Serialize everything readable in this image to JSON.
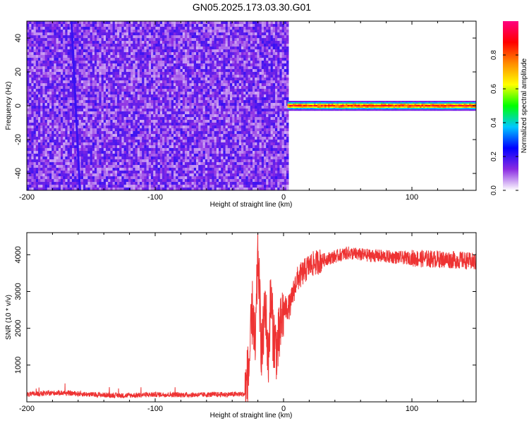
{
  "chart_data": [
    {
      "type": "heatmap",
      "title": "GN05.2025.173.03.30.G01",
      "xlabel": "Height of straight line (km)",
      "ylabel": "Frequency (Hz)",
      "xlim": [
        -200,
        150
      ],
      "ylim": [
        -50,
        50
      ],
      "x_ticks": [
        "-200",
        "-100",
        "0",
        "100"
      ],
      "y_ticks": [
        "40",
        "20",
        "0",
        "-20",
        "-40"
      ],
      "noise_region_x": [
        -200,
        3
      ],
      "signal_band": {
        "x": [
          3,
          150
        ],
        "frequency_hz": 0,
        "normalized_amplitude": 0.9
      },
      "colorbar": {
        "label": "Normalized spectral amplitude",
        "range": [
          0,
          1
        ],
        "ticks": [
          "0.0",
          "0.2",
          "0.4",
          "0.6",
          "0.8"
        ],
        "colors": [
          "#ffffff",
          "#8a2be2",
          "#0000ff",
          "#00c8ff",
          "#00ff00",
          "#ffff00",
          "#ff8c00",
          "#ff0000",
          "#ff0080"
        ]
      }
    },
    {
      "type": "line",
      "xlabel": "Height of straight line (km)",
      "ylabel": "SNR (10 * v/v)",
      "xlim": [
        -200,
        150
      ],
      "ylim": [
        0,
        4600
      ],
      "x_ticks": [
        "-200",
        "-100",
        "0",
        "100"
      ],
      "y_ticks": [
        "4000",
        "3000",
        "2000",
        "1000"
      ],
      "color": "#ee3333",
      "series": [
        {
          "x": [
            -200,
            -175,
            -150,
            -125,
            -100,
            -75,
            -50,
            -30,
            -27,
            -24,
            -22,
            -20,
            -17,
            -14,
            -12,
            -10,
            -8,
            -5,
            0,
            5,
            10,
            15,
            20,
            30,
            40,
            50,
            60,
            80,
            100,
            120,
            140,
            150
          ],
          "y": [
            200,
            250,
            200,
            170,
            200,
            190,
            200,
            210,
            900,
            2600,
            1300,
            4150,
            1200,
            2700,
            1000,
            2900,
            1800,
            1400,
            2500,
            2600,
            3300,
            3500,
            3700,
            3850,
            3950,
            4050,
            4000,
            3950,
            3900,
            3880,
            3850,
            3800
          ]
        }
      ]
    }
  ]
}
